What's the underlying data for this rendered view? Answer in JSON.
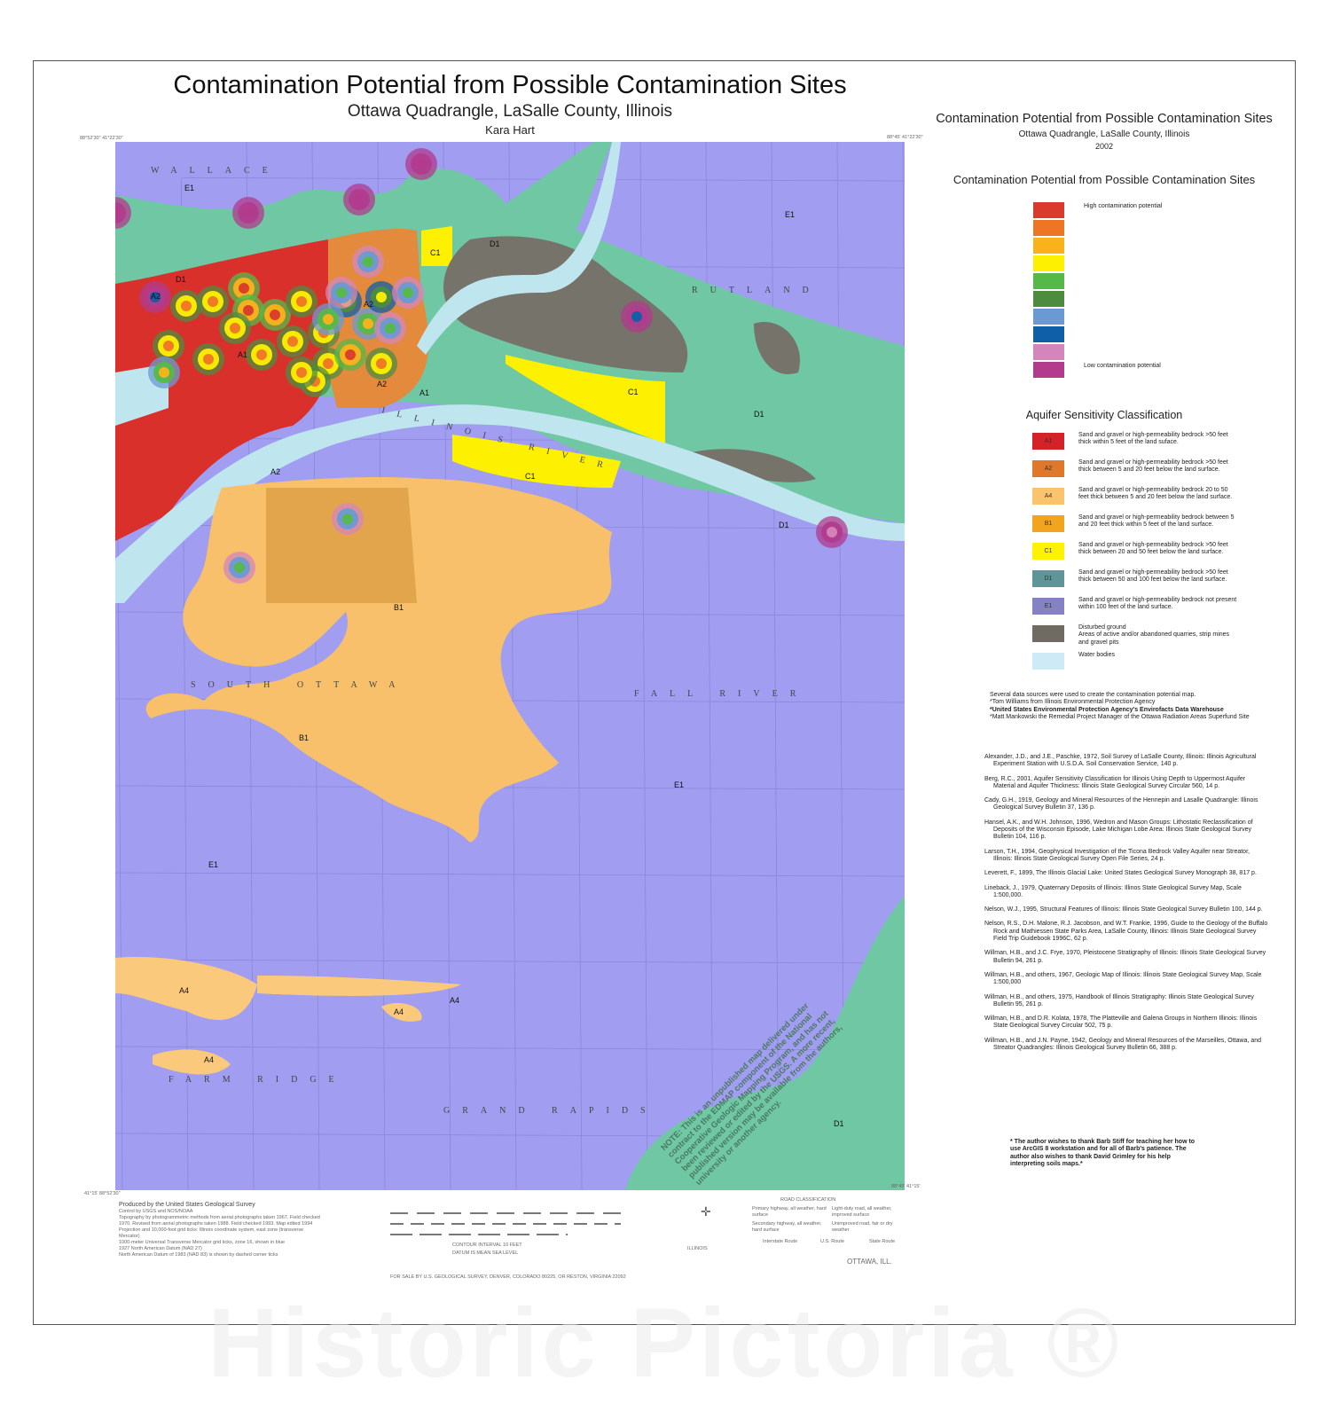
{
  "header": {
    "title": "Contamination Potential from Possible Contamination Sites",
    "subtitle": "Ottawa Quadrangle, LaSalle County, Illinois",
    "author": "Kara Hart"
  },
  "side": {
    "title": "Contamination Potential from Possible Contamination Sites",
    "subtitle": "Ottawa Quadrangle, LaSalle County, Illinois",
    "year": "2002"
  },
  "contamination_legend": {
    "title": "Contamination Potential from Possible Contamination Sites",
    "high_label": "High contamination potential",
    "low_label": "Low contamination potential",
    "colors": [
      "#d93a2b",
      "#ef7526",
      "#fbb21a",
      "#fdf000",
      "#55b947",
      "#4d8c3f",
      "#6b99d3",
      "#0e5ea8",
      "#d585bb",
      "#b23b8d"
    ]
  },
  "aquifer_legend": {
    "title": "Aquifer Sensitivity Classification",
    "items": [
      {
        "code": "A1",
        "color": "#d42229",
        "desc": "Sand and gravel or high-permeability bedrock >50 feet thick within 5 feet of the land suface."
      },
      {
        "code": "A2",
        "color": "#e0782c",
        "desc": "Sand and gravel or high-permeability bedrock >50 feet thick between 5 and 20 feet below the land surface."
      },
      {
        "code": "A4",
        "color": "#fbc46c",
        "desc": "Sand and gravel or high-permeability bedrock 20 to 50 feet thick between 5 and 20 feet below the land surface."
      },
      {
        "code": "B1",
        "color": "#f1a51f",
        "desc": "Sand and gravel or high-permeability bedrock between 5 and 20 feet thick within 5 feet of the land surface."
      },
      {
        "code": "C1",
        "color": "#fdf200",
        "desc": "Sand and gravel or high-permeability bedrock >50 feet thick between 20 and 50 feet below the land surface."
      },
      {
        "code": "D1",
        "color": "#5d9598",
        "desc": "Sand and gravel or high-permeability bedrock >50 feet thick between 50 and 100 feet below the land surface."
      },
      {
        "code": "E1",
        "color": "#8582c4",
        "desc": "Sand and gravel or high-permeability bedrock not present within 100 feet of the land surface."
      },
      {
        "code": "",
        "color": "#6f6b63",
        "desc": "Disturbed ground\nAreas of active and/or abandoned quarries, strip mines and gravel pits"
      },
      {
        "code": "",
        "color": "#cdeaf6",
        "desc": "Water bodies"
      }
    ]
  },
  "sources": {
    "intro": "Several data sources were used to create the contamination potential map.",
    "lines": [
      "*Tom Williams from Illinois Environmental Protection Agency",
      "*United States Environmental Protection Agency's Envirofacts Data Warehouse",
      "*Matt Mankowski the Remedial Project Manager of the Ottawa Radiation Areas Superfund Site"
    ]
  },
  "references": [
    "Alexander, J.D., and J.E., Paschke, 1972, Soil Survey of LaSalle County, Illinois: Illinois Agricultural Experiment Station with U.S.D.A. Soil Conservation Service, 140 p.",
    "Berg, R.C., 2001, Aquifer Sensitivity Classification for Illinois Using Depth to Uppermost Aquifer Material and Aquifer Thickness: Illinois State Geological Survey Circular 560, 14 p.",
    "Cady, G.H., 1919, Geology and Mineral Resources of the Hennepin and Lasalle Quadrangle: Illinois Geological Survey Bulletin 37, 136 p.",
    "Hansel, A.K., and W.H. Johnson, 1996, Wedron and Mason Groups: Lithostatic Reclassification of Deposits of the Wisconsin Episode, Lake Michigan Lobe Area: Illinois State Geological Survey Bulletin 104, 116 p.",
    "Larson, T.H., 1994, Geophysical Investigation of the Ticona Bedrock Valley Aquifer near Streator, Illinois: Illinois State Geological Survey Open File Series, 24 p.",
    "Leverett, F., 1899, The Illinois Glacial Lake: United States Geological Survey Monograph 38, 817 p.",
    "Lineback, J., 1979, Quaternary Deposits of Illinois: Illinos State Geological Survey Map, Scale 1:500,000.",
    "Nelson, W.J., 1995, Structural Features of Illinois: Illinois State Geological Survey Bulletin 100, 144 p.",
    "Nelson, R.S., D.H. Malone, R.J. Jacobson, and W.T. Frankie, 1996, Guide to the Geology of the Buffalo Rock and Mathiessen State Parks Area, LaSalle County, Illinois: Illinois State Geological Survey Field Trip Guidebook 1996C, 62 p.",
    "Willman, H.B., and J.C. Frye, 1970, Pleistocene Stratigraphy of Illinois: Illinois State Geological Survey Bulletin 94, 261 p.",
    "Willman, H.B., and others, 1967, Geologic Map of Illinois: Illinois State Geological Survey Map, Scale 1:500,000",
    "Willman, H.B., and others, 1975, Handbook of Illinois Stratigraphy: Illinois State Geological Survey Bulletin 95, 261 p.",
    "Willman, H.B., and D.R. Kolata, 1978, The Platteville and Galena Groups in Northern Illinois: Illinois State Geological Survey Circular 502, 75 p.",
    "Willman, H.B., and J.N. Payne, 1942, Geology and Mineral Resources of the Marseilles, Ottawa, and Streator Quadrangles: Illinois Geological Survey Bulletin 66, 388 p."
  ],
  "thanks": "* The author wishes to thank Barb Stiff for teaching her how to use ArcGIS 8 workstation and for all of Barb's patience. The author also wishes to thank David Grimley for his help interpreting soils maps.*",
  "map": {
    "places": {
      "wallace": "WALLACE",
      "rutland": "RUTLAND",
      "south_ottawa": "SOUTH OTTAWA",
      "fall_river": "FALL RIVER",
      "farm_ridge": "FARM RIDGE",
      "grand_rapids": "GRAND RAPIDS",
      "river": "ILLINOIS RIVER"
    },
    "note": "NOTE: This is an unpublished map delivered under contract to the EDMAP component of the National Cooperative Geologic Mapping Program, and has not been reviewed or edited by the USGS. A more recent, published version may be available from the authors, university or another agency.",
    "corner_nw": "88°52'30\"  41°22'30\"",
    "corner_ne": "88°45'  41°22'30\"",
    "corner_sw": "41°15'  88°52'30\"",
    "corner_se": "88°45'  41°15'"
  },
  "footer": {
    "usgs": [
      "Produced by the United States Geological Survey",
      "Control by USGS and NOS/NOAA",
      "Topography by photogrammetric methods from aerial photographs taken 1967. Field checked 1970. Revised from aerial photographs taken 1988. Field checked 1993. Map edited 1994",
      "Projection and 10,000-foot grid ticks: Illinois coordinate system, east zone (transverse Mercator)",
      "1000-meter Universal Transverse Mercator grid ticks, zone 16, shown in blue",
      "1927 North American Datum (NAD 27)",
      "North American Datum of 1983 (NAD 83) is shown by dashed corner ticks"
    ],
    "contour": "CONTOUR INTERVAL 10 FEET",
    "datum": "DATUM IS MEAN SEA LEVEL",
    "sale": "FOR SALE BY U.S. GEOLOGICAL SURVEY, DENVER, COLORADO 80225, OR RESTON, VIRGINIA 22092",
    "road_title": "ROAD CLASSIFICATION",
    "roads": [
      "Primary highway, all weather, hard surface",
      "Light-duty road, all weather, improved surface",
      "Secondary highway, all weather, hard surface",
      "Unimproved road, fair or dry weather"
    ],
    "routes": [
      "Interstate Route",
      "U.S. Route",
      "State Route"
    ],
    "quad_name": "OTTAWA, ILL.",
    "state": "ILLINOIS"
  },
  "watermark": "Historic Pictoria ®"
}
